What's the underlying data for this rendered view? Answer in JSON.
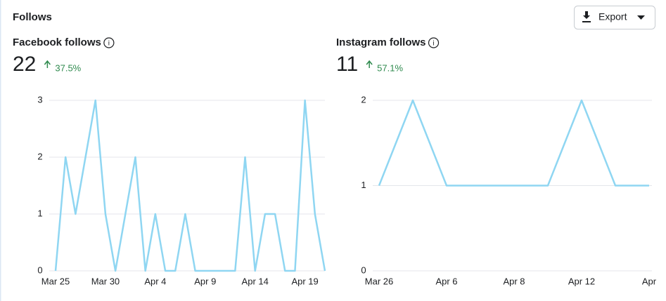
{
  "header": {
    "title": "Follows",
    "button": "Export"
  },
  "chart_data": [
    {
      "type": "line",
      "title": "Facebook follows",
      "total": "22",
      "change": "37.5%",
      "color": "#8fd6f2",
      "categories": [
        "Mar 25",
        null,
        null,
        null,
        null,
        "Mar 30",
        null,
        null,
        null,
        null,
        "Apr 4",
        null,
        null,
        null,
        null,
        "Apr 9",
        null,
        null,
        null,
        null,
        "Apr 14",
        null,
        null,
        null,
        null,
        "Apr 19",
        null,
        null
      ],
      "values": [
        0,
        2,
        1,
        2,
        3,
        1,
        0,
        1,
        2,
        0,
        1,
        0,
        0,
        1,
        0,
        0,
        0,
        0,
        0,
        2,
        0,
        1,
        1,
        0,
        0,
        3,
        1,
        0
      ],
      "ylim": [
        0,
        3
      ],
      "yticks": [
        0,
        1,
        2,
        3
      ],
      "grid": true
    },
    {
      "type": "line",
      "title": "Instagram follows",
      "total": "11",
      "change": "57.1%",
      "color": "#8fd6f2",
      "categories": [
        "Mar 26",
        null,
        "Apr 6",
        null,
        "Apr 8",
        null,
        "Apr 12",
        null,
        "Apr"
      ],
      "values": [
        1,
        2,
        1,
        1,
        1,
        1,
        2,
        1,
        1
      ],
      "ylim": [
        0,
        2
      ],
      "yticks": [
        0,
        1,
        2
      ],
      "grid": true
    }
  ]
}
